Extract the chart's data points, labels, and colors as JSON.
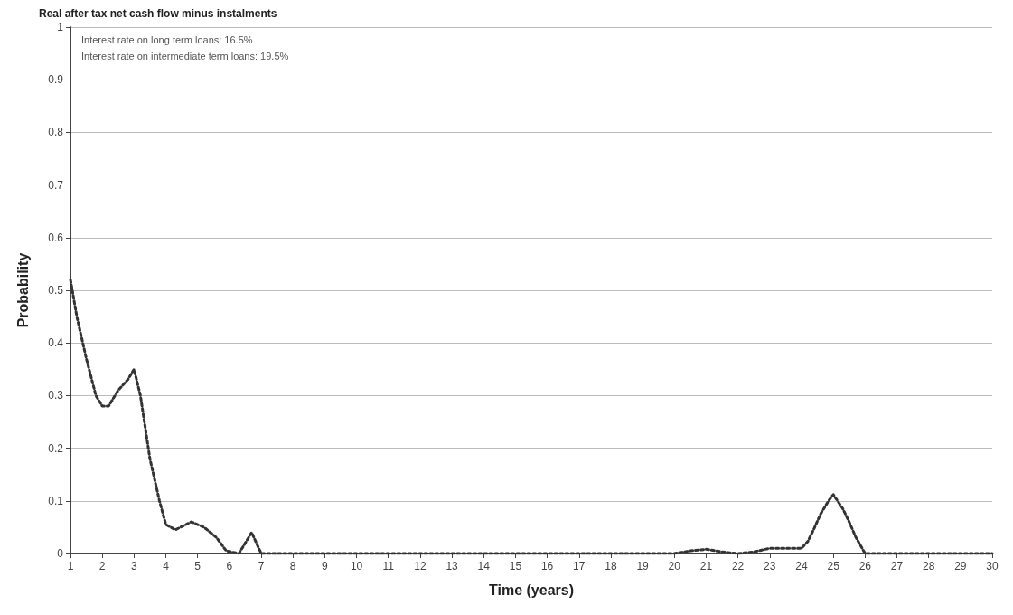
{
  "chart_data": {
    "type": "line",
    "xlabel": "Time (years)",
    "ylabel": "Probability",
    "annotations": [
      "Interest rate on long term loans: 16.5%",
      "Interest rate on intermediate term loans: 19.5%"
    ],
    "x": [
      1,
      1.2,
      1.5,
      1.8,
      2,
      2.2,
      2.5,
      2.8,
      3,
      3.2,
      3.5,
      3.8,
      4,
      4.3,
      4.8,
      5.2,
      5.6,
      5.9,
      6.3,
      6.7,
      7,
      8,
      10,
      12,
      14,
      16,
      18,
      19,
      20,
      20.5,
      21,
      21.5,
      22,
      22.5,
      23,
      23.5,
      24,
      24.2,
      24.4,
      24.6,
      24.85,
      25,
      25.3,
      25.5,
      25.7,
      26,
      27,
      28,
      29,
      30
    ],
    "series": [
      {
        "name": "Real after tax net cash flow minus instalments",
        "color": "#333333",
        "values": [
          0.52,
          0.45,
          0.37,
          0.3,
          0.28,
          0.28,
          0.31,
          0.33,
          0.35,
          0.3,
          0.18,
          0.1,
          0.055,
          0.045,
          0.06,
          0.05,
          0.03,
          0.005,
          0,
          0.04,
          0,
          0,
          0,
          0,
          0,
          0,
          0,
          0,
          0,
          0.005,
          0.008,
          0.003,
          0,
          0.003,
          0.01,
          0.01,
          0.01,
          0.023,
          0.048,
          0.075,
          0.1,
          0.112,
          0.085,
          0.06,
          0.032,
          0,
          0,
          0,
          0,
          0
        ]
      }
    ],
    "xlim": [
      1,
      30
    ],
    "xticks": [
      1,
      2,
      3,
      4,
      5,
      6,
      7,
      8,
      9,
      10,
      11,
      12,
      13,
      14,
      15,
      16,
      17,
      18,
      19,
      20,
      21,
      22,
      23,
      24,
      25,
      26,
      27,
      28,
      29,
      30
    ],
    "ylim": [
      0,
      1
    ],
    "yticks": [
      0,
      0.1,
      0.2,
      0.3,
      0.4,
      0.5,
      0.6,
      0.7,
      0.8,
      0.9,
      1
    ],
    "grid": "y",
    "legend": "top left",
    "marker": "none",
    "line_style": "dotted"
  }
}
